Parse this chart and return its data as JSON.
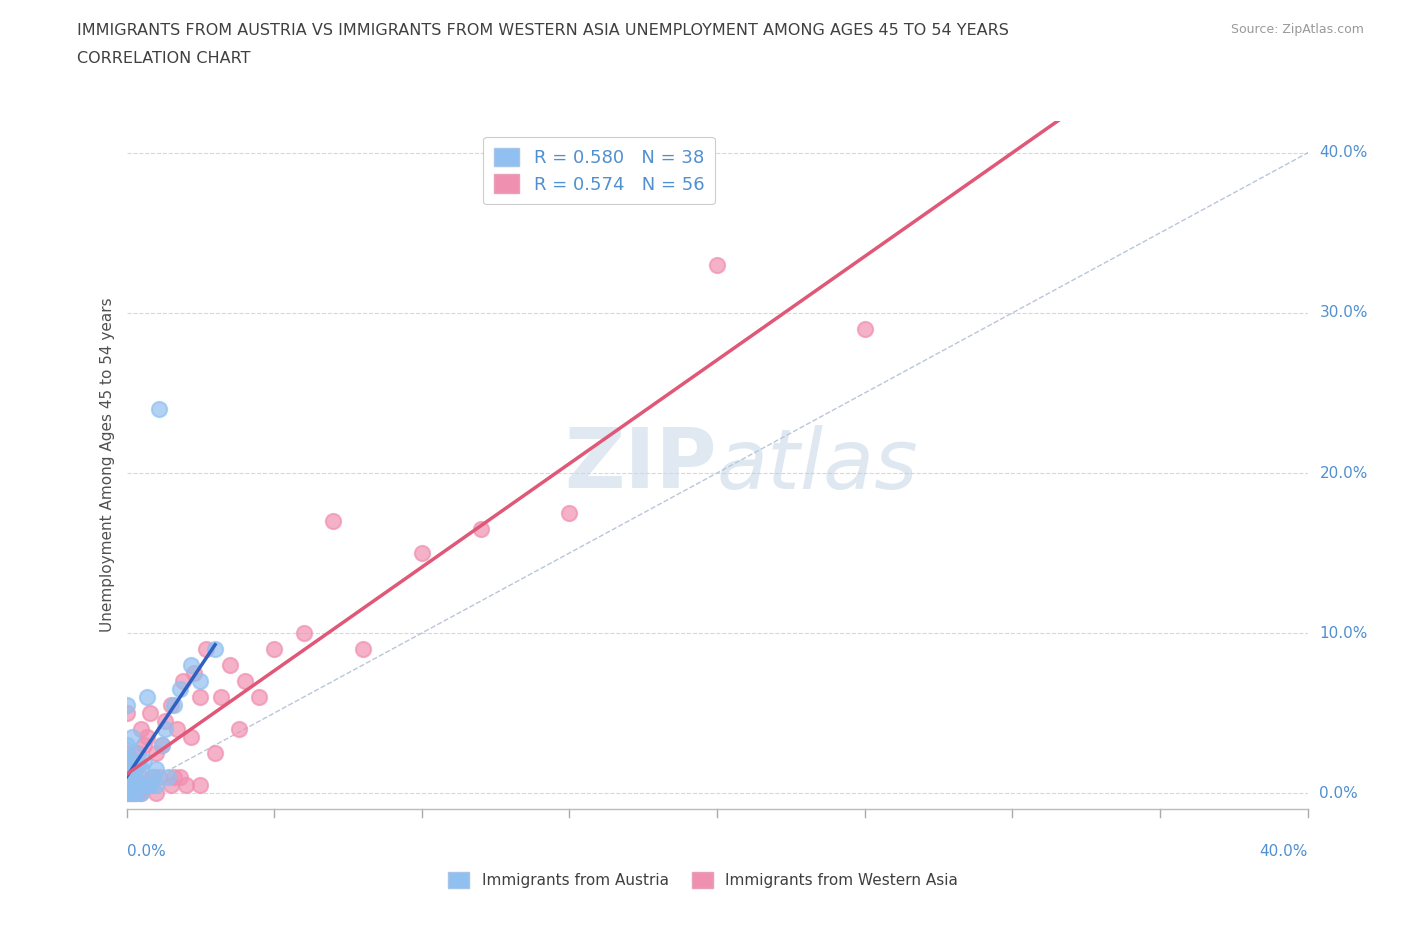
{
  "title_line1": "IMMIGRANTS FROM AUSTRIA VS IMMIGRANTS FROM WESTERN ASIA UNEMPLOYMENT AMONG AGES 45 TO 54 YEARS",
  "title_line2": "CORRELATION CHART",
  "source_text": "Source: ZipAtlas.com",
  "ylabel": "Unemployment Among Ages 45 to 54 years",
  "ytick_vals": [
    0.0,
    0.1,
    0.2,
    0.3,
    0.4
  ],
  "xlim": [
    0.0,
    0.4
  ],
  "ylim": [
    -0.01,
    0.42
  ],
  "austria_color": "#90c0f0",
  "austria_line_color": "#3060c0",
  "western_asia_color": "#f090b0",
  "western_asia_line_color": "#e05878",
  "diag_color": "#a8b8d0",
  "austria_R": 0.58,
  "austria_N": 38,
  "western_asia_R": 0.574,
  "western_asia_N": 56,
  "legend_label_austria": "Immigrants from Austria",
  "legend_label_western_asia": "Immigrants from Western Asia",
  "watermark_zip": "ZIP",
  "watermark_atlas": "atlas",
  "background_color": "#ffffff",
  "grid_color": "#d8d8d8",
  "title_color": "#404040",
  "axis_label_color": "#5090d0",
  "austria_x": [
    0.0,
    0.0,
    0.0,
    0.0,
    0.0,
    0.0,
    0.0,
    0.001,
    0.001,
    0.001,
    0.002,
    0.002,
    0.002,
    0.002,
    0.003,
    0.003,
    0.003,
    0.004,
    0.004,
    0.005,
    0.005,
    0.006,
    0.006,
    0.007,
    0.007,
    0.008,
    0.009,
    0.01,
    0.01,
    0.011,
    0.012,
    0.013,
    0.014,
    0.016,
    0.018,
    0.022,
    0.025,
    0.03
  ],
  "austria_y": [
    0.0,
    0.005,
    0.01,
    0.015,
    0.02,
    0.03,
    0.055,
    0.0,
    0.008,
    0.02,
    0.0,
    0.01,
    0.02,
    0.035,
    0.0,
    0.01,
    0.025,
    0.005,
    0.018,
    0.0,
    0.015,
    0.005,
    0.02,
    0.005,
    0.06,
    0.005,
    0.01,
    0.005,
    0.015,
    0.24,
    0.03,
    0.04,
    0.01,
    0.055,
    0.065,
    0.08,
    0.07,
    0.09
  ],
  "western_asia_x": [
    0.0,
    0.0,
    0.0,
    0.0,
    0.0,
    0.0,
    0.001,
    0.001,
    0.002,
    0.002,
    0.003,
    0.003,
    0.004,
    0.004,
    0.005,
    0.005,
    0.005,
    0.006,
    0.006,
    0.007,
    0.007,
    0.008,
    0.008,
    0.009,
    0.01,
    0.01,
    0.011,
    0.012,
    0.013,
    0.015,
    0.015,
    0.016,
    0.017,
    0.018,
    0.019,
    0.02,
    0.022,
    0.023,
    0.025,
    0.025,
    0.027,
    0.03,
    0.032,
    0.035,
    0.038,
    0.04,
    0.045,
    0.05,
    0.06,
    0.07,
    0.08,
    0.1,
    0.12,
    0.15,
    0.2,
    0.25
  ],
  "western_asia_y": [
    0.0,
    0.005,
    0.01,
    0.015,
    0.025,
    0.05,
    0.0,
    0.015,
    0.0,
    0.02,
    0.0,
    0.015,
    0.0,
    0.025,
    0.0,
    0.01,
    0.04,
    0.005,
    0.03,
    0.005,
    0.035,
    0.005,
    0.05,
    0.01,
    0.0,
    0.025,
    0.01,
    0.03,
    0.045,
    0.005,
    0.055,
    0.01,
    0.04,
    0.01,
    0.07,
    0.005,
    0.035,
    0.075,
    0.005,
    0.06,
    0.09,
    0.025,
    0.06,
    0.08,
    0.04,
    0.07,
    0.06,
    0.09,
    0.1,
    0.17,
    0.09,
    0.15,
    0.165,
    0.175,
    0.33,
    0.29
  ]
}
